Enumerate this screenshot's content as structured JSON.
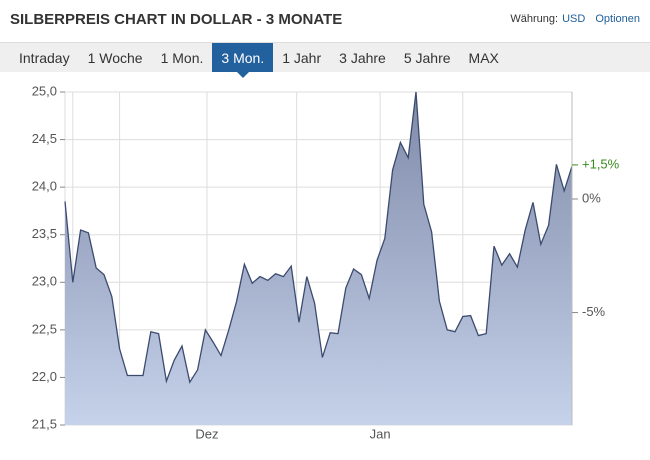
{
  "header": {
    "title": "SILBERPREIS CHART IN DOLLAR - 3 MONATE",
    "currency_label": "Währung:",
    "currency": "USD",
    "options": "Optionen"
  },
  "tabs": [
    "Intraday",
    "1 Woche",
    "1 Mon.",
    "3 Mon.",
    "1 Jahr",
    "3 Jahre",
    "5 Jahre",
    "MAX"
  ],
  "active_tab": 3,
  "chart_data": {
    "type": "area",
    "x": [
      0,
      1,
      2,
      3,
      4,
      5,
      6,
      7,
      8,
      9,
      10,
      11,
      12,
      13,
      14,
      15,
      16,
      17,
      18,
      19,
      20,
      21,
      22,
      23,
      24,
      25,
      26,
      27,
      28,
      29,
      30,
      31,
      32,
      33,
      34,
      35,
      36,
      37,
      38,
      39,
      40,
      41,
      42,
      43,
      44,
      45,
      46,
      47,
      48,
      49,
      50,
      51,
      52,
      53,
      54,
      55,
      56,
      57,
      58,
      59,
      60,
      61,
      62,
      63,
      64,
      65
    ],
    "values": [
      23.85,
      23.0,
      23.55,
      23.52,
      23.15,
      23.08,
      22.85,
      22.3,
      22.02,
      22.02,
      22.02,
      22.48,
      22.46,
      21.96,
      22.18,
      22.33,
      21.95,
      22.08,
      22.5,
      22.37,
      22.23,
      22.5,
      22.8,
      23.19,
      22.99,
      23.06,
      23.02,
      23.09,
      23.06,
      23.17,
      22.58,
      23.06,
      22.78,
      22.21,
      22.47,
      22.46,
      22.94,
      23.14,
      23.08,
      22.83,
      23.23,
      23.46,
      24.18,
      24.47,
      24.31,
      25.0,
      23.82,
      23.53,
      22.8,
      22.5,
      22.48,
      22.64,
      22.65,
      22.44,
      22.46,
      23.38,
      23.18,
      23.3,
      23.16,
      23.55,
      23.84,
      23.4,
      23.6,
      24.24,
      23.96,
      24.22
    ],
    "color": "#3b4a6e",
    "xlim": [
      0,
      65
    ],
    "xticks": [
      {
        "value": 18.2,
        "label": "Dez"
      },
      {
        "value": 40.4,
        "label": "Jan"
      }
    ],
    "xgrid": [
      1,
      7,
      29.7,
      51
    ],
    "ylim": [
      21.5,
      25.0
    ],
    "yticks": [
      {
        "value": 21.5,
        "label": "21,5"
      },
      {
        "value": 22.0,
        "label": "22,0"
      },
      {
        "value": 22.5,
        "label": "22,5"
      },
      {
        "value": 23.0,
        "label": "23,0"
      },
      {
        "value": 23.5,
        "label": "23,5"
      },
      {
        "value": 24.0,
        "label": "24,0"
      },
      {
        "value": 24.5,
        "label": "24,5"
      },
      {
        "value": 25.0,
        "label": "25,0"
      }
    ],
    "y2lim": [
      -9.95,
      4.71
    ],
    "y2ticks": [
      {
        "value": 0,
        "label": "0%"
      },
      {
        "value": -5,
        "label": "-5%"
      }
    ],
    "annotation": {
      "value": 1.5,
      "label": "+1,5%",
      "color": "#3a8a1e"
    },
    "grid": true
  }
}
